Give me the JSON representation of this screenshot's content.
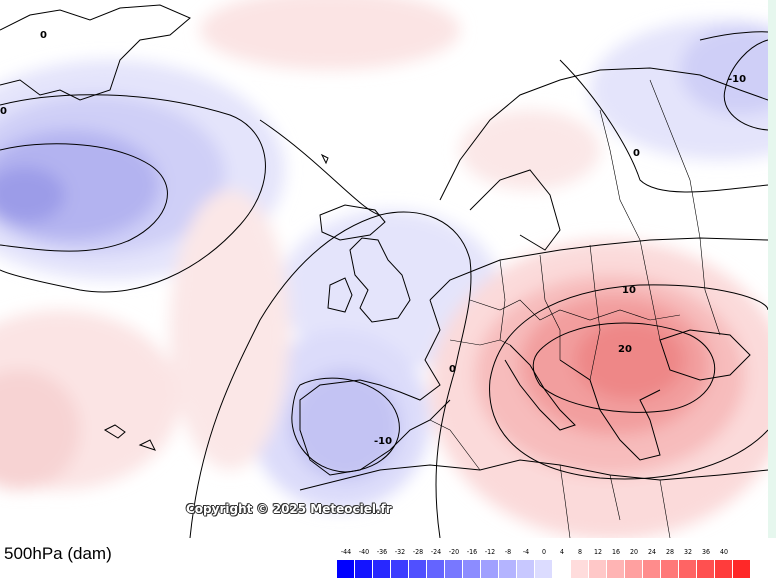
{
  "title": "500hPa (dam)",
  "copyright": "Copyright © 2025 Meteociel.fr",
  "contour_labels": {
    "zero_nw": "0",
    "zero_w": "0",
    "minus10_ne": "-10",
    "zero_ne": "0",
    "ten_e": "10",
    "twenty_e": "20",
    "zero_c": "0",
    "minus10_iberia": "-10"
  },
  "legend": {
    "labels": [
      "-44",
      "-40",
      "-36",
      "-32",
      "-28",
      "-24",
      "-20",
      "-16",
      "-12",
      "-8",
      "-4",
      "0",
      "4",
      "8",
      "12",
      "16",
      "20",
      "24",
      "28",
      "32",
      "36",
      "40"
    ],
    "colors": [
      "#0000ff",
      "#1414ff",
      "#2828ff",
      "#3c3cff",
      "#5050ff",
      "#6464ff",
      "#7878ff",
      "#8c8cff",
      "#a0a0ff",
      "#b4b4ff",
      "#c8c8ff",
      "#dcdcff",
      "#ffffff",
      "#ffdcdc",
      "#ffc8c8",
      "#ffb4b4",
      "#ffa0a0",
      "#ff8c8c",
      "#ff7878",
      "#ff6464",
      "#ff5050",
      "#ff3c3c",
      "#ff2828"
    ]
  }
}
